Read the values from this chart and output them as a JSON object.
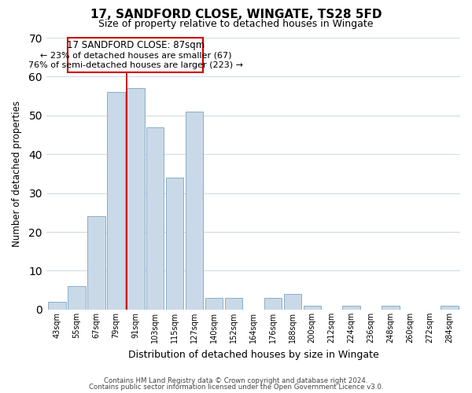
{
  "title": "17, SANDFORD CLOSE, WINGATE, TS28 5FD",
  "subtitle": "Size of property relative to detached houses in Wingate",
  "xlabel": "Distribution of detached houses by size in Wingate",
  "ylabel": "Number of detached properties",
  "bin_labels": [
    "43sqm",
    "55sqm",
    "67sqm",
    "79sqm",
    "91sqm",
    "103sqm",
    "115sqm",
    "127sqm",
    "140sqm",
    "152sqm",
    "164sqm",
    "176sqm",
    "188sqm",
    "200sqm",
    "212sqm",
    "224sqm",
    "236sqm",
    "248sqm",
    "260sqm",
    "272sqm",
    "284sqm"
  ],
  "bar_heights": [
    2,
    6,
    24,
    56,
    57,
    47,
    34,
    51,
    3,
    3,
    0,
    3,
    4,
    1,
    0,
    1,
    0,
    1,
    0,
    0,
    1
  ],
  "bar_color": "#c9d9e8",
  "bar_edge_color": "#8aafc8",
  "ylim": [
    0,
    70
  ],
  "yticks": [
    0,
    10,
    20,
    30,
    40,
    50,
    60,
    70
  ],
  "property_line_label": "17 SANDFORD CLOSE: 87sqm",
  "annotation_line1": "← 23% of detached houses are smaller (67)",
  "annotation_line2": "76% of semi-detached houses are larger (223) →",
  "box_edge_color": "#cc0000",
  "footer1": "Contains HM Land Registry data © Crown copyright and database right 2024.",
  "footer2": "Contains public sector information licensed under the Open Government Licence v3.0."
}
